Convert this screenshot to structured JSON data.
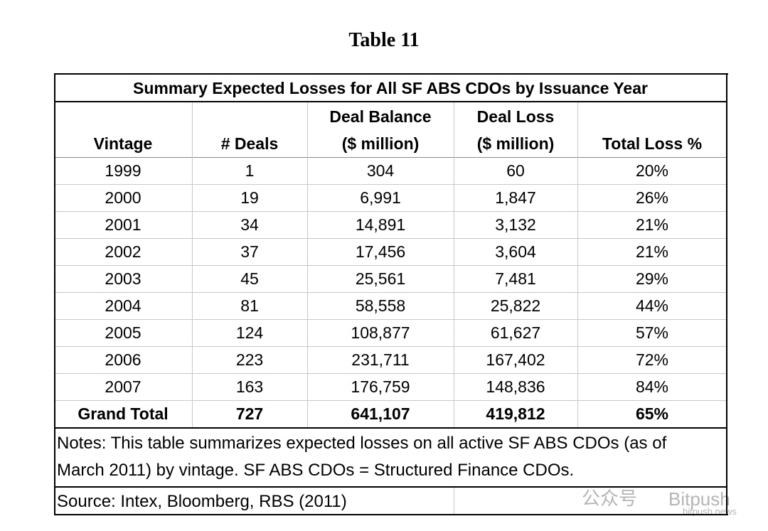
{
  "title": "Table 11",
  "table": {
    "caption": "Summary Expected Losses for All SF ABS CDOs by Issuance Year",
    "header": [
      [
        "Vintage"
      ],
      [
        "# Deals"
      ],
      [
        "Deal Balance",
        "($ million)"
      ],
      [
        "Deal Loss",
        "($ million)"
      ],
      [
        "Total Loss %"
      ]
    ],
    "rows": [
      [
        "1999",
        "1",
        "304",
        "60",
        "20%"
      ],
      [
        "2000",
        "19",
        "6,991",
        "1,847",
        "26%"
      ],
      [
        "2001",
        "34",
        "14,891",
        "3,132",
        "21%"
      ],
      [
        "2002",
        "37",
        "17,456",
        "3,604",
        "21%"
      ],
      [
        "2003",
        "45",
        "25,561",
        "7,481",
        "29%"
      ],
      [
        "2004",
        "81",
        "58,558",
        "25,822",
        "44%"
      ],
      [
        "2005",
        "124",
        "108,877",
        "61,627",
        "57%"
      ],
      [
        "2006",
        "223",
        "231,711",
        "167,402",
        "72%"
      ],
      [
        "2007",
        "163",
        "176,759",
        "148,836",
        "84%"
      ]
    ],
    "total": [
      "Grand Total",
      "727",
      "641,107",
      "419,812",
      "65%"
    ],
    "notes": "Notes: This table summarizes expected losses on all active SF ABS CDOs (as of March 2011) by vintage. SF ABS CDOs = Structured Finance CDOs.",
    "source": "Source: Intex, Bloomberg, RBS (2011)"
  },
  "watermark": [
    "公众号",
    "Bitpush",
    "bitpush.news"
  ]
}
